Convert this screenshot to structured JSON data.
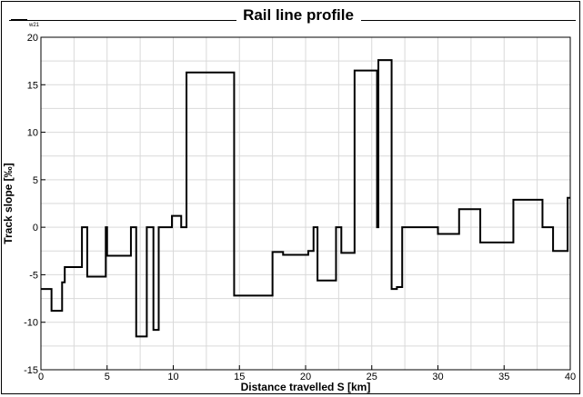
{
  "chart_data": {
    "type": "line",
    "title": "Rail line profile",
    "xlabel": "Distance travelled S [km]",
    "ylabel": "Track slope [‰]",
    "xlim": [
      0,
      40
    ],
    "ylim": [
      -15,
      20
    ],
    "x_ticks": [
      0,
      5,
      10,
      15,
      20,
      25,
      30,
      35,
      40
    ],
    "y_ticks": [
      -15,
      -10,
      -5,
      0,
      5,
      10,
      15,
      20
    ],
    "grid": true,
    "legend_position": "top-left",
    "series": [
      {
        "name": "w21",
        "color": "#000000",
        "x": [
          0,
          0.8,
          0.8,
          1.6,
          1.6,
          1.8,
          1.8,
          3.1,
          3.1,
          3.5,
          3.5,
          4.9,
          4.9,
          5.0,
          5.0,
          6.8,
          6.8,
          7.2,
          7.2,
          8.0,
          8.0,
          8.5,
          8.5,
          8.9,
          8.9,
          9.9,
          9.9,
          10.6,
          10.6,
          11.0,
          11.0,
          14.6,
          14.6,
          17.5,
          17.5,
          18.3,
          18.3,
          20.2,
          20.2,
          20.6,
          20.6,
          20.9,
          20.9,
          22.3,
          22.3,
          22.7,
          22.7,
          23.7,
          23.7,
          25.4,
          25.4,
          25.5,
          25.5,
          26.5,
          26.5,
          26.9,
          26.9,
          27.3,
          27.3,
          30.0,
          30.0,
          31.6,
          31.6,
          33.2,
          33.2,
          35.7,
          35.7,
          37.9,
          37.9,
          38.7,
          38.7,
          39.8,
          39.8,
          40.0
        ],
        "y": [
          -6.5,
          -6.5,
          -8.8,
          -8.8,
          -5.8,
          -5.8,
          -4.2,
          -4.2,
          0,
          0,
          -5.2,
          -5.2,
          0,
          0,
          -3,
          -3,
          0,
          0,
          -11.5,
          -11.5,
          0,
          0,
          -10.8,
          -10.8,
          0,
          0,
          1.2,
          1.2,
          0,
          0,
          16.3,
          16.3,
          -7.2,
          -7.2,
          -2.6,
          -2.6,
          -2.9,
          -2.9,
          -2.5,
          -2.5,
          0,
          0,
          -5.6,
          -5.6,
          0,
          0,
          -2.7,
          -2.7,
          16.5,
          16.5,
          0,
          0,
          17.6,
          17.6,
          -6.5,
          -6.5,
          -6.3,
          -6.3,
          0,
          0,
          -0.7,
          -0.7,
          1.9,
          1.9,
          -1.6,
          -1.6,
          2.9,
          2.9,
          0,
          0,
          -2.5,
          -2.5,
          3.1,
          3.1
        ]
      }
    ]
  }
}
